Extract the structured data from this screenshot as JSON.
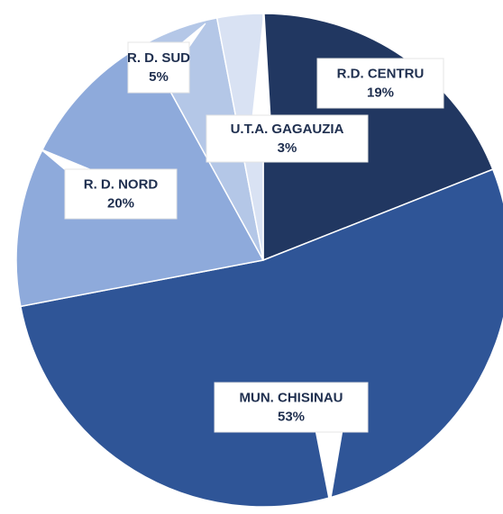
{
  "chart_data": {
    "type": "pie",
    "categories": [
      "R.D. CENTRU",
      "MUN. CHISINAU",
      "R. D. NORD",
      "R. D. SUD",
      "U.T.A. GAGAUZIA"
    ],
    "values": [
      19,
      53,
      20,
      5,
      3
    ],
    "value_labels": [
      "19%",
      "53%",
      "20%",
      "5%",
      "3%"
    ],
    "colors": [
      "#213761",
      "#2f5597",
      "#8eaadb",
      "#b4c7e7",
      "#d9e2f3"
    ]
  }
}
